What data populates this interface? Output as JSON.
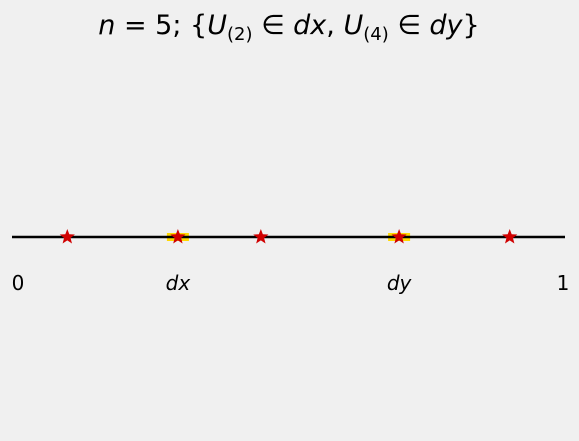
{
  "title": {
    "n_var": "n",
    "equals": " = 5; {",
    "u1": "U",
    "sub1": "(2)",
    "in1": " ∈ ",
    "dx": "dx",
    "comma": ", ",
    "u2": "U",
    "sub2": "(4)",
    "in2": " ∈ ",
    "dy": "dy",
    "close": "}"
  },
  "axis": {
    "start_label": "0",
    "end_label": "1",
    "range": [
      0,
      1
    ],
    "marks": [
      {
        "label": "dx",
        "position": 0.3,
        "highlighted": true
      },
      {
        "label": "dy",
        "position": 0.7,
        "highlighted": true
      }
    ]
  },
  "points": {
    "values": [
      0.1,
      0.3,
      0.45,
      0.7,
      0.9
    ],
    "marker_icon": "star-icon",
    "star_color": "#d00000",
    "highlight_color": "#ffd700",
    "line_color": "#000000"
  }
}
